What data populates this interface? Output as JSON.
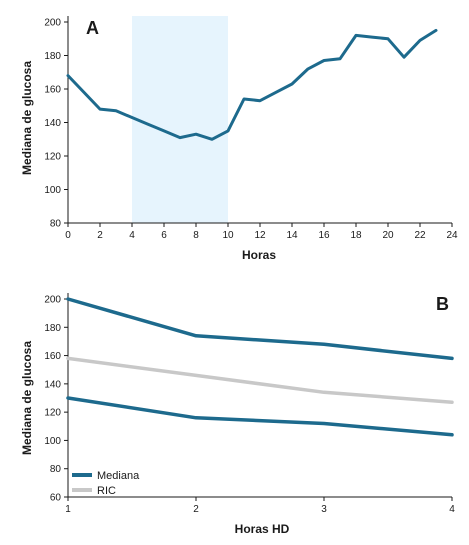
{
  "colors": {
    "mediana": "#1d6a8d",
    "ric": "#c8c8c8",
    "shade": "#e6f4fd",
    "axis": "#1a1a1a"
  },
  "chart_data": [
    {
      "panel": "A",
      "type": "line",
      "xlabel": "Horas",
      "ylabel": "Mediana de glucosa",
      "xlim": [
        0,
        24
      ],
      "ylim": [
        80,
        200
      ],
      "xticks": [
        0,
        2,
        4,
        6,
        8,
        10,
        12,
        14,
        16,
        18,
        20,
        22,
        24
      ],
      "yticks": [
        80,
        100,
        120,
        140,
        160,
        180,
        200
      ],
      "shaded_range": [
        4,
        10
      ],
      "grid": false,
      "series": [
        {
          "x": [
            0,
            2,
            3,
            4,
            5,
            6,
            7,
            8,
            9,
            10,
            11,
            12,
            13,
            14,
            15,
            16,
            17,
            18,
            19,
            20,
            21,
            22,
            23
          ],
          "values": [
            168,
            148,
            147,
            143,
            139,
            135,
            131,
            133,
            130,
            135,
            154,
            153,
            158,
            163,
            172,
            177,
            178,
            192,
            191,
            190,
            179,
            189,
            195
          ]
        }
      ]
    },
    {
      "panel": "B",
      "type": "line",
      "xlabel": "Horas HD",
      "ylabel": "Mediana de glucosa",
      "xlim": [
        1,
        4
      ],
      "ylim": [
        60,
        200
      ],
      "xticks": [
        1,
        2,
        3,
        4
      ],
      "yticks": [
        60,
        80,
        100,
        120,
        140,
        160,
        180,
        200
      ],
      "grid": false,
      "legend_position": "bottom-left",
      "series": [
        {
          "name": "Mediana",
          "x": [
            1,
            2,
            3,
            4
          ],
          "values": [
            200,
            174,
            168,
            158
          ]
        },
        {
          "name": "RIC",
          "x": [
            1,
            2,
            3,
            4
          ],
          "values": [
            158,
            146,
            134,
            127
          ]
        },
        {
          "x": [
            1,
            2,
            3,
            4
          ],
          "values": [
            130,
            116,
            112,
            104
          ]
        }
      ],
      "legend": [
        {
          "label": "Mediana",
          "series": 0
        },
        {
          "label": "RIC",
          "series": 1
        }
      ]
    }
  ]
}
